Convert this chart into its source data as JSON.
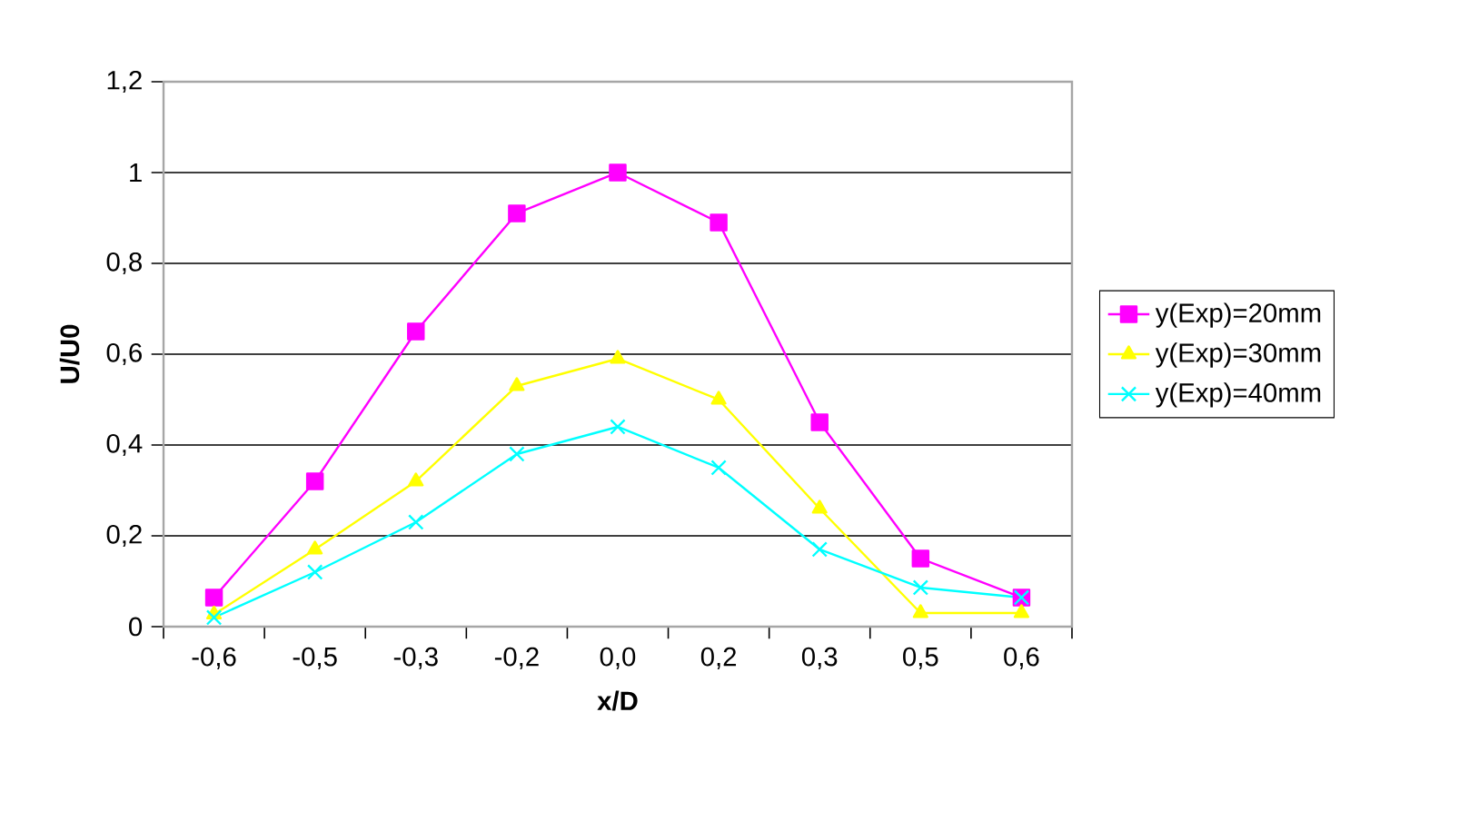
{
  "chart_data": {
    "type": "line",
    "xlabel": "x/D",
    "ylabel": "U/U0",
    "categories": [
      "-0,6",
      "-0,5",
      "-0,3",
      "-0,2",
      "0,0",
      "0,2",
      "0,3",
      "0,5",
      "0,6"
    ],
    "series": [
      {
        "name": "y(Exp)=20mm",
        "color": "#ff00ff",
        "marker": "square",
        "values": [
          0.064,
          0.32,
          0.65,
          0.91,
          1.0,
          0.89,
          0.45,
          0.15,
          0.064
        ]
      },
      {
        "name": "y(Exp)=30mm",
        "color": "#ffff00",
        "marker": "triangle",
        "values": [
          0.027,
          0.17,
          0.32,
          0.53,
          0.59,
          0.5,
          0.26,
          0.03,
          0.03
        ]
      },
      {
        "name": "y(Exp)=40mm",
        "color": "#00ffff",
        "marker": "cross",
        "values": [
          0.02,
          0.12,
          0.23,
          0.38,
          0.44,
          0.35,
          0.17,
          0.086,
          0.064
        ]
      }
    ],
    "ylim": [
      0,
      1.2
    ],
    "yticks": [
      {
        "value": 0,
        "label": "0"
      },
      {
        "value": 0.2,
        "label": "0,2"
      },
      {
        "value": 0.4,
        "label": "0,4"
      },
      {
        "value": 0.6,
        "label": "0,6"
      },
      {
        "value": 0.8,
        "label": "0,8"
      },
      {
        "value": 1,
        "label": "1"
      },
      {
        "value": 1.2,
        "label": "1,2"
      }
    ],
    "grid": "y",
    "legend": "right",
    "line_style": "solid"
  }
}
